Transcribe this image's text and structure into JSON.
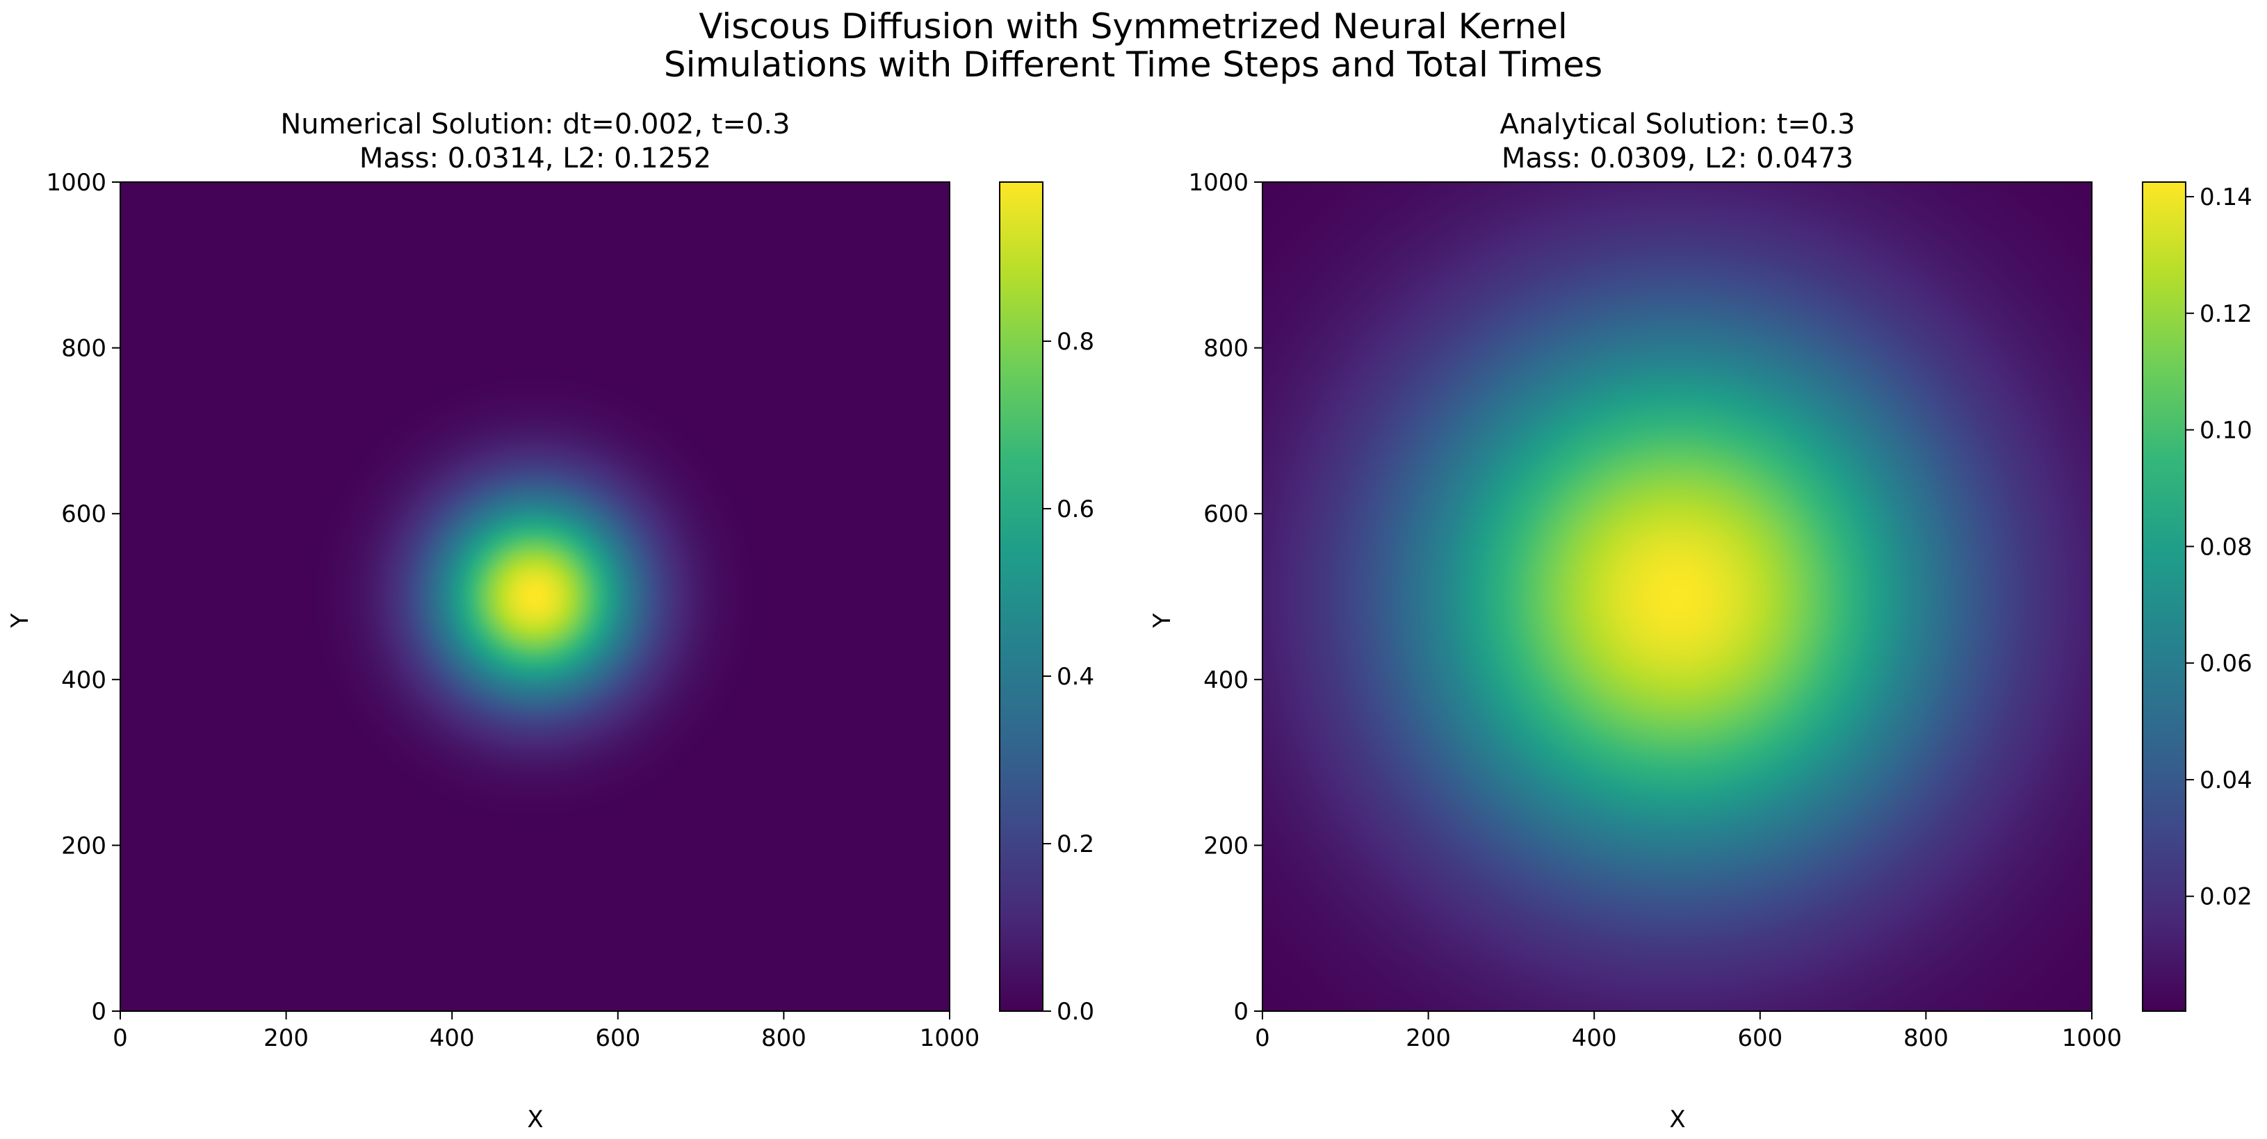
{
  "figure": {
    "title_line1": "Viscous Diffusion with Symmetrized Neural Kernel",
    "title_line2": "Simulations with Different Time Steps and Total Times"
  },
  "colormap": [
    "#440154",
    "#482878",
    "#3e4989",
    "#31688e",
    "#26828e",
    "#1f9e89",
    "#35b779",
    "#6ece58",
    "#b5de2b",
    "#fde725"
  ],
  "chart_data": [
    {
      "type": "heatmap",
      "title_line1": "Numerical Solution: dt=0.002, t=0.3",
      "title_line2": "Mass: 0.0314, L2: 0.1252",
      "xlabel": "X",
      "ylabel": "Y",
      "xlim": [
        0,
        1000
      ],
      "ylim": [
        0,
        1000
      ],
      "xticks": [
        "0",
        "200",
        "400",
        "600",
        "800",
        "1000"
      ],
      "yticks": [
        "0",
        "200",
        "400",
        "600",
        "800",
        "1000"
      ],
      "peak": {
        "x": 500,
        "y": 500,
        "value": 0.99
      },
      "sigma": 85,
      "colorbar": {
        "min": 0.0,
        "max": 0.99,
        "ticks": [
          "0.0",
          "0.2",
          "0.4",
          "0.6",
          "0.8"
        ],
        "tick_values": [
          0.0,
          0.2,
          0.4,
          0.6,
          0.8
        ]
      }
    },
    {
      "type": "heatmap",
      "title_line1": "Analytical Solution: t=0.3",
      "title_line2": "Mass: 0.0309, L2: 0.0473",
      "xlabel": "X",
      "ylabel": "Y",
      "xlim": [
        0,
        1000
      ],
      "ylim": [
        0,
        1000
      ],
      "xticks": [
        "0",
        "200",
        "400",
        "600",
        "800",
        "1000"
      ],
      "yticks": [
        "0",
        "200",
        "400",
        "600",
        "800",
        "1000"
      ],
      "peak": {
        "x": 500,
        "y": 500,
        "value": 0.142
      },
      "sigma": 225,
      "colorbar": {
        "min": 0.0003,
        "max": 0.1425,
        "ticks": [
          "0.02",
          "0.04",
          "0.06",
          "0.08",
          "0.10",
          "0.12",
          "0.14"
        ],
        "tick_values": [
          0.02,
          0.04,
          0.06,
          0.08,
          0.1,
          0.12,
          0.14
        ]
      }
    }
  ]
}
